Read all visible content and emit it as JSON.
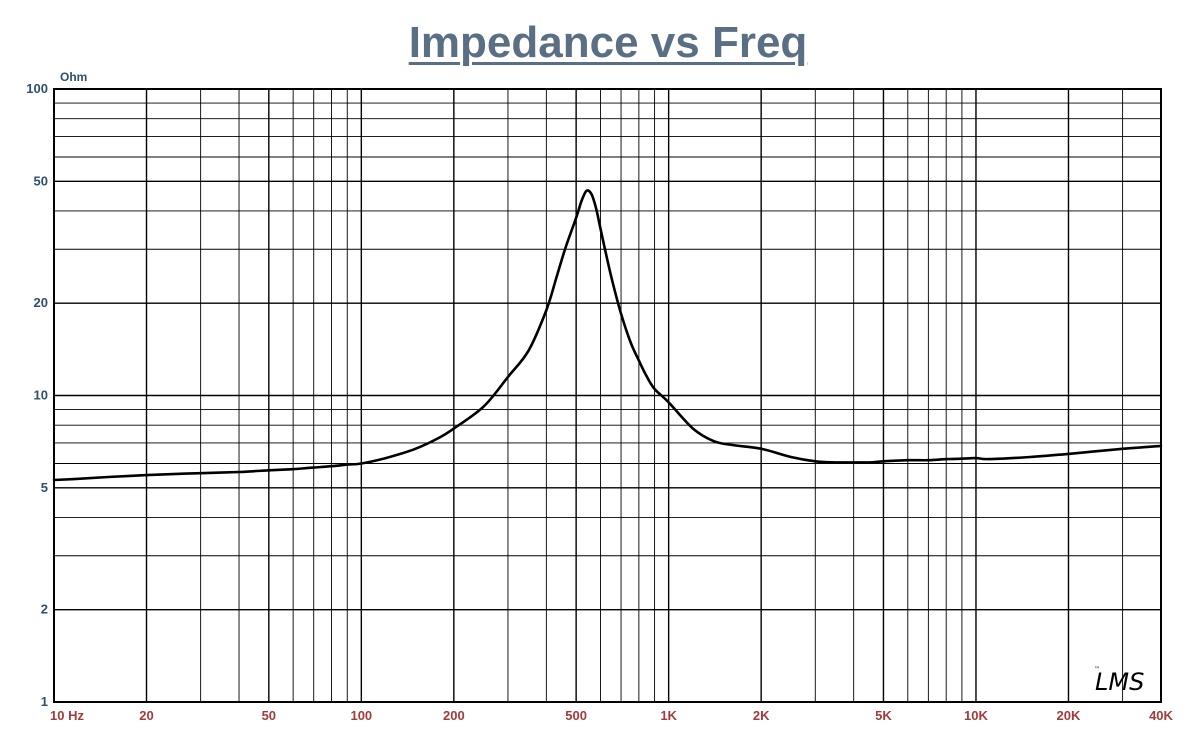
{
  "colors": {
    "title": "#5a6f83",
    "y_labels": "#2f4f6b",
    "x_labels": "#a63a3a",
    "grid": "#000000",
    "curve": "#000000"
  },
  "logo": {
    "text": "LMS",
    "mark": "™"
  },
  "chart_data": {
    "type": "line",
    "title": "Impedance vs Freq",
    "ylabel": "Ohm",
    "xlabel": "",
    "x_scale": "log",
    "y_scale": "log",
    "xlim": [
      10,
      40000
    ],
    "ylim": [
      1,
      100
    ],
    "grid": true,
    "x_ticks": [
      {
        "value": 10,
        "label": "10  Hz"
      },
      {
        "value": 20,
        "label": "20"
      },
      {
        "value": 50,
        "label": "50"
      },
      {
        "value": 100,
        "label": "100"
      },
      {
        "value": 200,
        "label": "200"
      },
      {
        "value": 500,
        "label": "500"
      },
      {
        "value": 1000,
        "label": "1K"
      },
      {
        "value": 2000,
        "label": "2K"
      },
      {
        "value": 5000,
        "label": "5K"
      },
      {
        "value": 10000,
        "label": "10K"
      },
      {
        "value": 20000,
        "label": "20K"
      },
      {
        "value": 40000,
        "label": "40K"
      }
    ],
    "y_ticks": [
      {
        "value": 1,
        "label": "1"
      },
      {
        "value": 2,
        "label": "2"
      },
      {
        "value": 5,
        "label": "5"
      },
      {
        "value": 10,
        "label": "10"
      },
      {
        "value": 20,
        "label": "20"
      },
      {
        "value": 50,
        "label": "50"
      },
      {
        "value": 100,
        "label": "100"
      }
    ],
    "series": [
      {
        "x": [
          10,
          12,
          15,
          20,
          25,
          30,
          40,
          50,
          60,
          70,
          80,
          90,
          100,
          120,
          150,
          180,
          200,
          250,
          300,
          350,
          400,
          430,
          460,
          500,
          520,
          540,
          560,
          580,
          600,
          630,
          660,
          700,
          750,
          800,
          850,
          900,
          1000,
          1200,
          1400,
          1600,
          2000,
          2500,
          3000,
          3500,
          4000,
          4500,
          5000,
          6000,
          7000,
          8000,
          9000,
          10000,
          11000,
          15000,
          20000,
          30000,
          40000
        ],
        "y": [
          5.3,
          5.35,
          5.42,
          5.5,
          5.55,
          5.58,
          5.63,
          5.7,
          5.75,
          5.82,
          5.88,
          5.95,
          6.0,
          6.25,
          6.7,
          7.3,
          7.8,
          9.2,
          11.5,
          14.0,
          19.0,
          24.0,
          30.0,
          38.0,
          43.0,
          46.5,
          45.5,
          41.0,
          35.0,
          28.0,
          23.0,
          18.5,
          15.0,
          13.0,
          11.5,
          10.5,
          9.5,
          7.8,
          7.1,
          6.9,
          6.7,
          6.3,
          6.1,
          6.05,
          6.05,
          6.05,
          6.1,
          6.15,
          6.15,
          6.2,
          6.22,
          6.25,
          6.2,
          6.3,
          6.45,
          6.7,
          6.85
        ]
      }
    ]
  }
}
